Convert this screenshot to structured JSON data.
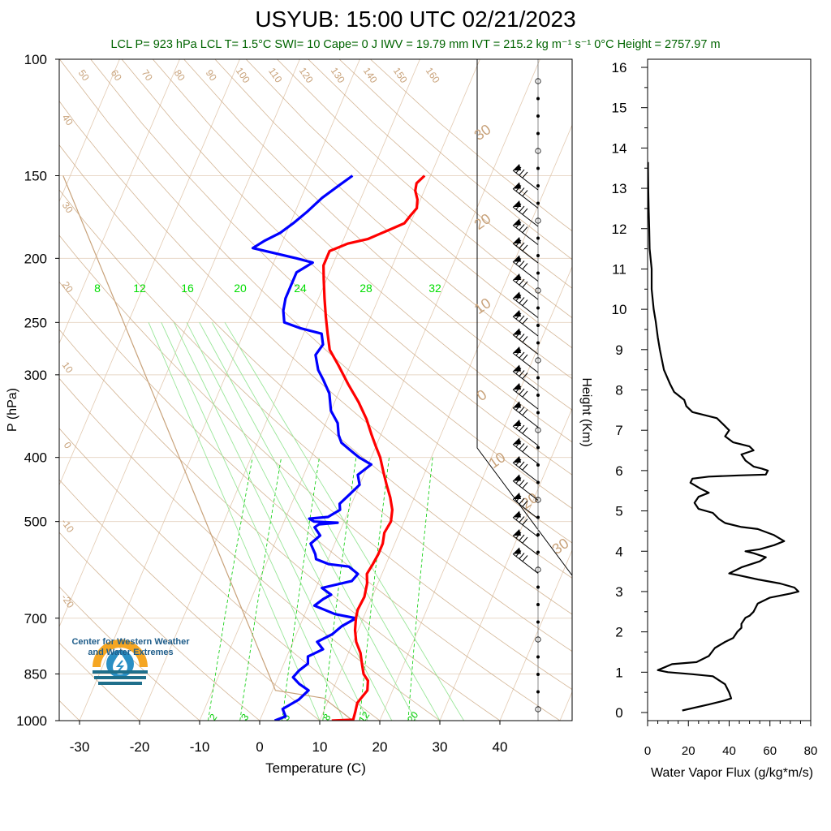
{
  "header": {
    "title": "USYUB: 15:00 UTC 02/21/2023",
    "stats_line": "LCL P= 923 hPa  LCL T= 1.5°C  SWI= 10  Cape= 0 J  IWV = 19.79 mm  IVT = 215.2 kg m⁻¹ s⁻¹  0°C Height = 2757.97 m"
  },
  "logo": {
    "name_line1": "Center for Western Weather",
    "name_line2": "and Water Extremes",
    "colors": {
      "sun": "#f5a623",
      "drop": "#2a8fc4",
      "waves": "#1f6f8b"
    }
  },
  "colors": {
    "temperature": "#ff0000",
    "dewpoint": "#0000ff",
    "dry_adiabat": "#c8a27a",
    "mixing_ratio": "#00cc00",
    "parcel": "#c8a27a",
    "isobar": "#e8d8c8",
    "stats": "#006400",
    "flux": "#000000"
  },
  "chart_data": [
    {
      "type": "line",
      "name": "skew-t",
      "xlabel": "Temperature (C)",
      "ylabel": "P (hPa)",
      "x_ticks": [
        -30,
        -20,
        -10,
        0,
        10,
        20,
        30,
        40
      ],
      "y_ticks": [
        100,
        150,
        200,
        250,
        300,
        400,
        500,
        700,
        850,
        1000
      ],
      "ylim": [
        100,
        1000
      ],
      "y_scale": "log",
      "mixing_ratio_labels": [
        "8",
        "12",
        "16",
        "20",
        "24",
        "28",
        "32"
      ],
      "mixing_ratio_bottom_labels": [
        "2",
        "3",
        "5",
        "8",
        "12",
        "20"
      ],
      "dry_adiabat_labels": [
        "50",
        "60",
        "70",
        "80",
        "90",
        "100",
        "110",
        "120",
        "130",
        "140",
        "150",
        "160"
      ],
      "isotherm_labels": [
        "40",
        "30",
        "20",
        "10",
        "0",
        "-10",
        "-20"
      ],
      "hodograph_labels": [
        "30",
        "20",
        "10",
        "0",
        "10",
        "20",
        "30"
      ],
      "series": [
        {
          "name": "Temperature",
          "points": [
            [
              12.0,
              1000
            ],
            [
              15.5,
              997
            ],
            [
              15.3,
              970
            ],
            [
              15.0,
              940
            ],
            [
              15.8,
              900
            ],
            [
              15.2,
              870
            ],
            [
              14.0,
              850
            ],
            [
              13.0,
              820
            ],
            [
              12.0,
              790
            ],
            [
              10.5,
              760
            ],
            [
              9.5,
              730
            ],
            [
              8.8,
              700
            ],
            [
              8.5,
              680
            ],
            [
              8.7,
              650
            ],
            [
              8.2,
              620
            ],
            [
              7.5,
              600
            ],
            [
              7.8,
              580
            ],
            [
              8.0,
              560
            ],
            [
              8.0,
              540
            ],
            [
              7.5,
              520
            ],
            [
              7.8,
              500
            ],
            [
              7.2,
              480
            ],
            [
              6.0,
              460
            ],
            [
              4.5,
              440
            ],
            [
              3.0,
              420
            ],
            [
              1.5,
              400
            ],
            [
              0.0,
              385
            ],
            [
              -1.5,
              370
            ],
            [
              -3.5,
              350
            ],
            [
              -6.0,
              330
            ],
            [
              -9.0,
              310
            ],
            [
              -12.0,
              290
            ],
            [
              -14.5,
              275
            ],
            [
              -16.0,
              260
            ],
            [
              -17.5,
              245
            ],
            [
              -19.0,
              230
            ],
            [
              -20.5,
              215
            ],
            [
              -21.5,
              205
            ],
            [
              -21.5,
              195
            ],
            [
              -19.0,
              190
            ],
            [
              -16.0,
              187
            ],
            [
              -14.5,
              184
            ],
            [
              -13.0,
              181
            ],
            [
              -11.0,
              177
            ],
            [
              -10.5,
              172
            ],
            [
              -10.0,
              168
            ],
            [
              -10.5,
              163
            ],
            [
              -11.5,
              158
            ],
            [
              -11.8,
              154
            ],
            [
              -11.0,
              150
            ]
          ]
        },
        {
          "name": "Dewpoint",
          "points": [
            [
              2.5,
              1000
            ],
            [
              4.0,
              985
            ],
            [
              3.0,
              960
            ],
            [
              5.0,
              930
            ],
            [
              6.0,
              900
            ],
            [
              4.0,
              880
            ],
            [
              2.5,
              860
            ],
            [
              3.0,
              840
            ],
            [
              4.0,
              820
            ],
            [
              3.5,
              800
            ],
            [
              5.5,
              780
            ],
            [
              4.0,
              760
            ],
            [
              6.0,
              740
            ],
            [
              7.0,
              720
            ],
            [
              8.8,
              700
            ],
            [
              5.0,
              690
            ],
            [
              1.0,
              670
            ],
            [
              2.0,
              655
            ],
            [
              3.0,
              645
            ],
            [
              1.0,
              630
            ],
            [
              5.5,
              615
            ],
            [
              6.0,
              600
            ],
            [
              4.0,
              585
            ],
            [
              0.5,
              580
            ],
            [
              -2.0,
              570
            ],
            [
              -2.5,
              560
            ],
            [
              -4.0,
              540
            ],
            [
              -3.0,
              525
            ],
            [
              -4.5,
              510
            ],
            [
              -4.0,
              505
            ],
            [
              -1.0,
              502
            ],
            [
              -5.0,
              500
            ],
            [
              -6.0,
              495
            ],
            [
              -3.0,
              492
            ],
            [
              -1.5,
              480
            ],
            [
              -2.0,
              470
            ],
            [
              -1.0,
              455
            ],
            [
              0.0,
              440
            ],
            [
              -1.0,
              425
            ],
            [
              0.5,
              410
            ],
            [
              -2.0,
              400
            ],
            [
              -4.0,
              390
            ],
            [
              -6.0,
              380
            ],
            [
              -7.0,
              370
            ],
            [
              -8.0,
              355
            ],
            [
              -10.0,
              340
            ],
            [
              -11.5,
              320
            ],
            [
              -13.5,
              305
            ],
            [
              -15.0,
              295
            ],
            [
              -16.5,
              280
            ],
            [
              -16.0,
              270
            ],
            [
              -17.0,
              260
            ],
            [
              -21.0,
              255
            ],
            [
              -24.0,
              250
            ],
            [
              -25.0,
              240
            ],
            [
              -25.5,
              230
            ],
            [
              -25.5,
              220
            ],
            [
              -25.5,
              210
            ],
            [
              -23.5,
              203
            ],
            [
              -26.5,
              200
            ],
            [
              -31.0,
              196
            ],
            [
              -34.5,
              193
            ],
            [
              -33.0,
              188
            ],
            [
              -31.0,
              183
            ],
            [
              -29.5,
              177
            ],
            [
              -28.0,
              170
            ],
            [
              -26.5,
              162
            ],
            [
              -24.5,
              155
            ],
            [
              -23.0,
              150
            ]
          ]
        }
      ]
    },
    {
      "type": "line",
      "name": "water-vapor-flux",
      "xlabel": "Water Vapor Flux (g/kg*m/s)",
      "ylabel": "Height (Km)",
      "x_ticks": [
        0,
        20,
        40,
        60,
        80
      ],
      "y_ticks": [
        0,
        1,
        2,
        3,
        4,
        5,
        6,
        7,
        8,
        9,
        10,
        11,
        12,
        13,
        14,
        15,
        16
      ],
      "xlim": [
        0,
        80
      ],
      "ylim": [
        0,
        16.5
      ],
      "points": [
        [
          17,
          0.05
        ],
        [
          30,
          0.2
        ],
        [
          38,
          0.3
        ],
        [
          41,
          0.35
        ],
        [
          40,
          0.5
        ],
        [
          38,
          0.7
        ],
        [
          32,
          0.9
        ],
        [
          22,
          0.95
        ],
        [
          10,
          1.0
        ],
        [
          5,
          1.05
        ],
        [
          12,
          1.2
        ],
        [
          24,
          1.25
        ],
        [
          30,
          1.4
        ],
        [
          33,
          1.6
        ],
        [
          38,
          1.75
        ],
        [
          42,
          1.85
        ],
        [
          44,
          2.0
        ],
        [
          46,
          2.1
        ],
        [
          46,
          2.2
        ],
        [
          48,
          2.35
        ],
        [
          50,
          2.4
        ],
        [
          52,
          2.5
        ],
        [
          54,
          2.7
        ],
        [
          60,
          2.85
        ],
        [
          70,
          2.95
        ],
        [
          74,
          3.0
        ],
        [
          72,
          3.1
        ],
        [
          65,
          3.2
        ],
        [
          54,
          3.3
        ],
        [
          45,
          3.4
        ],
        [
          40,
          3.45
        ],
        [
          46,
          3.6
        ],
        [
          55,
          3.75
        ],
        [
          58,
          3.85
        ],
        [
          52,
          3.95
        ],
        [
          48,
          4.0
        ],
        [
          55,
          4.05
        ],
        [
          62,
          4.15
        ],
        [
          67,
          4.25
        ],
        [
          62,
          4.4
        ],
        [
          54,
          4.55
        ],
        [
          46,
          4.6
        ],
        [
          38,
          4.7
        ],
        [
          35,
          4.8
        ],
        [
          32,
          4.95
        ],
        [
          25,
          5.05
        ],
        [
          23,
          5.2
        ],
        [
          25,
          5.35
        ],
        [
          30,
          5.45
        ],
        [
          26,
          5.55
        ],
        [
          21,
          5.7
        ],
        [
          22,
          5.8
        ],
        [
          30,
          5.85
        ],
        [
          45,
          5.88
        ],
        [
          58,
          5.9
        ],
        [
          59,
          6.0
        ],
        [
          56,
          6.05
        ],
        [
          52,
          6.1
        ],
        [
          48,
          6.25
        ],
        [
          46,
          6.4
        ],
        [
          52,
          6.5
        ],
        [
          50,
          6.6
        ],
        [
          42,
          6.7
        ],
        [
          38,
          6.85
        ],
        [
          40,
          7.0
        ],
        [
          37,
          7.15
        ],
        [
          34,
          7.3
        ],
        [
          30,
          7.35
        ],
        [
          22,
          7.45
        ],
        [
          19,
          7.6
        ],
        [
          18,
          7.75
        ],
        [
          13,
          7.95
        ],
        [
          11,
          8.15
        ],
        [
          8,
          8.5
        ],
        [
          6,
          9.0
        ],
        [
          5,
          9.3
        ],
        [
          4,
          9.7
        ],
        [
          3,
          10.0
        ],
        [
          2,
          10.5
        ],
        [
          2,
          11.0
        ],
        [
          1,
          11.5
        ],
        [
          0.8,
          12.0
        ],
        [
          0.5,
          12.5
        ],
        [
          0.3,
          13.0
        ],
        [
          0.2,
          13.5
        ],
        [
          0.2,
          13.65
        ]
      ]
    }
  ]
}
